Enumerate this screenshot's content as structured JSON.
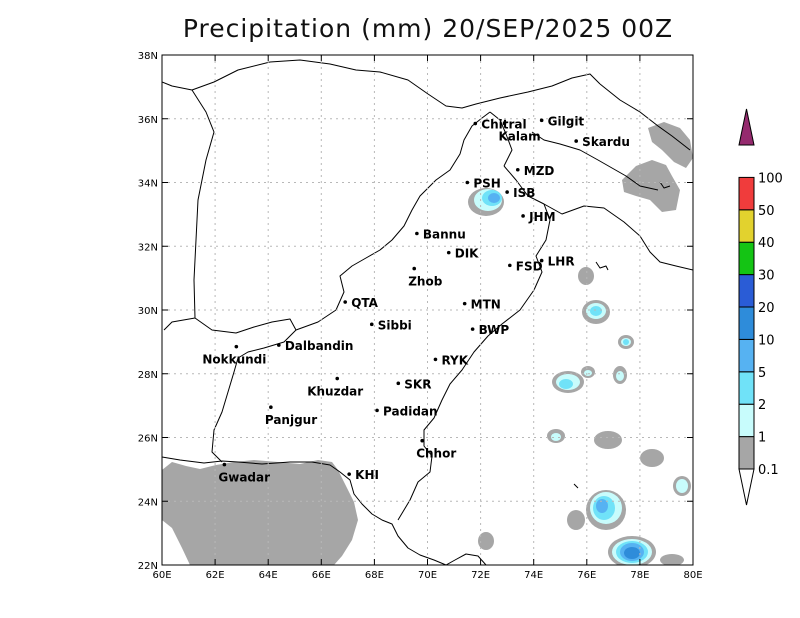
{
  "title": "Precipitation (mm) 20/SEP/2025 00Z",
  "map": {
    "lon_range": [
      60,
      80
    ],
    "lat_range": [
      22,
      38
    ],
    "x_ticks": [
      "60E",
      "62E",
      "64E",
      "66E",
      "68E",
      "70E",
      "72E",
      "74E",
      "76E",
      "78E",
      "80E"
    ],
    "y_ticks": [
      "22N",
      "24N",
      "26N",
      "28N",
      "30N",
      "32N",
      "34N",
      "36N",
      "38N"
    ],
    "grid": "dotted"
  },
  "cities": [
    {
      "name": "Chitral",
      "lon": 71.8,
      "lat": 35.85
    },
    {
      "name": "Kalam",
      "lon": 72.9,
      "lat": 35.85
    },
    {
      "name": "Gilgit",
      "lon": 74.3,
      "lat": 35.95
    },
    {
      "name": "Skardu",
      "lon": 75.6,
      "lat": 35.3
    },
    {
      "name": "MZD",
      "lon": 73.4,
      "lat": 34.4
    },
    {
      "name": "PSH",
      "lon": 71.5,
      "lat": 34.0
    },
    {
      "name": "ISB",
      "lon": 73.0,
      "lat": 33.7
    },
    {
      "name": "JHM",
      "lon": 73.6,
      "lat": 32.95
    },
    {
      "name": "Bannu",
      "lon": 69.6,
      "lat": 32.4
    },
    {
      "name": "DIK",
      "lon": 70.8,
      "lat": 31.8
    },
    {
      "name": "FSD",
      "lon": 73.1,
      "lat": 31.4
    },
    {
      "name": "LHR",
      "lon": 74.3,
      "lat": 31.55
    },
    {
      "name": "Zhob",
      "lon": 69.5,
      "lat": 31.3
    },
    {
      "name": "QTA",
      "lon": 66.9,
      "lat": 30.25
    },
    {
      "name": "MTN",
      "lon": 71.4,
      "lat": 30.2
    },
    {
      "name": "Sibbi",
      "lon": 67.9,
      "lat": 29.55
    },
    {
      "name": "BWP",
      "lon": 71.7,
      "lat": 29.4
    },
    {
      "name": "Dalbandin",
      "lon": 64.4,
      "lat": 28.9
    },
    {
      "name": "Nokkundi",
      "lon": 62.8,
      "lat": 28.85
    },
    {
      "name": "RYK",
      "lon": 70.3,
      "lat": 28.45
    },
    {
      "name": "Khuzdar",
      "lon": 66.6,
      "lat": 27.85
    },
    {
      "name": "SKR",
      "lon": 68.9,
      "lat": 27.7
    },
    {
      "name": "Panjgur",
      "lon": 64.1,
      "lat": 26.95
    },
    {
      "name": "Padidan",
      "lon": 68.1,
      "lat": 26.85
    },
    {
      "name": "Chhor",
      "lon": 69.8,
      "lat": 25.9
    },
    {
      "name": "KHI",
      "lon": 67.05,
      "lat": 24.85
    },
    {
      "name": "Gwadar",
      "lon": 62.35,
      "lat": 25.15
    }
  ],
  "colorbar": {
    "levels": [
      "0.1",
      "1",
      "2",
      "5",
      "10",
      "20",
      "30",
      "40",
      "50",
      "100"
    ],
    "colors": [
      "#a6a6a6",
      "#c8fcfc",
      "#70e2f8",
      "#56b2f2",
      "#2e8cda",
      "#2a5cd6",
      "#14c414",
      "#e2d22e",
      "#f03c3c",
      "#952a6e"
    ]
  }
}
